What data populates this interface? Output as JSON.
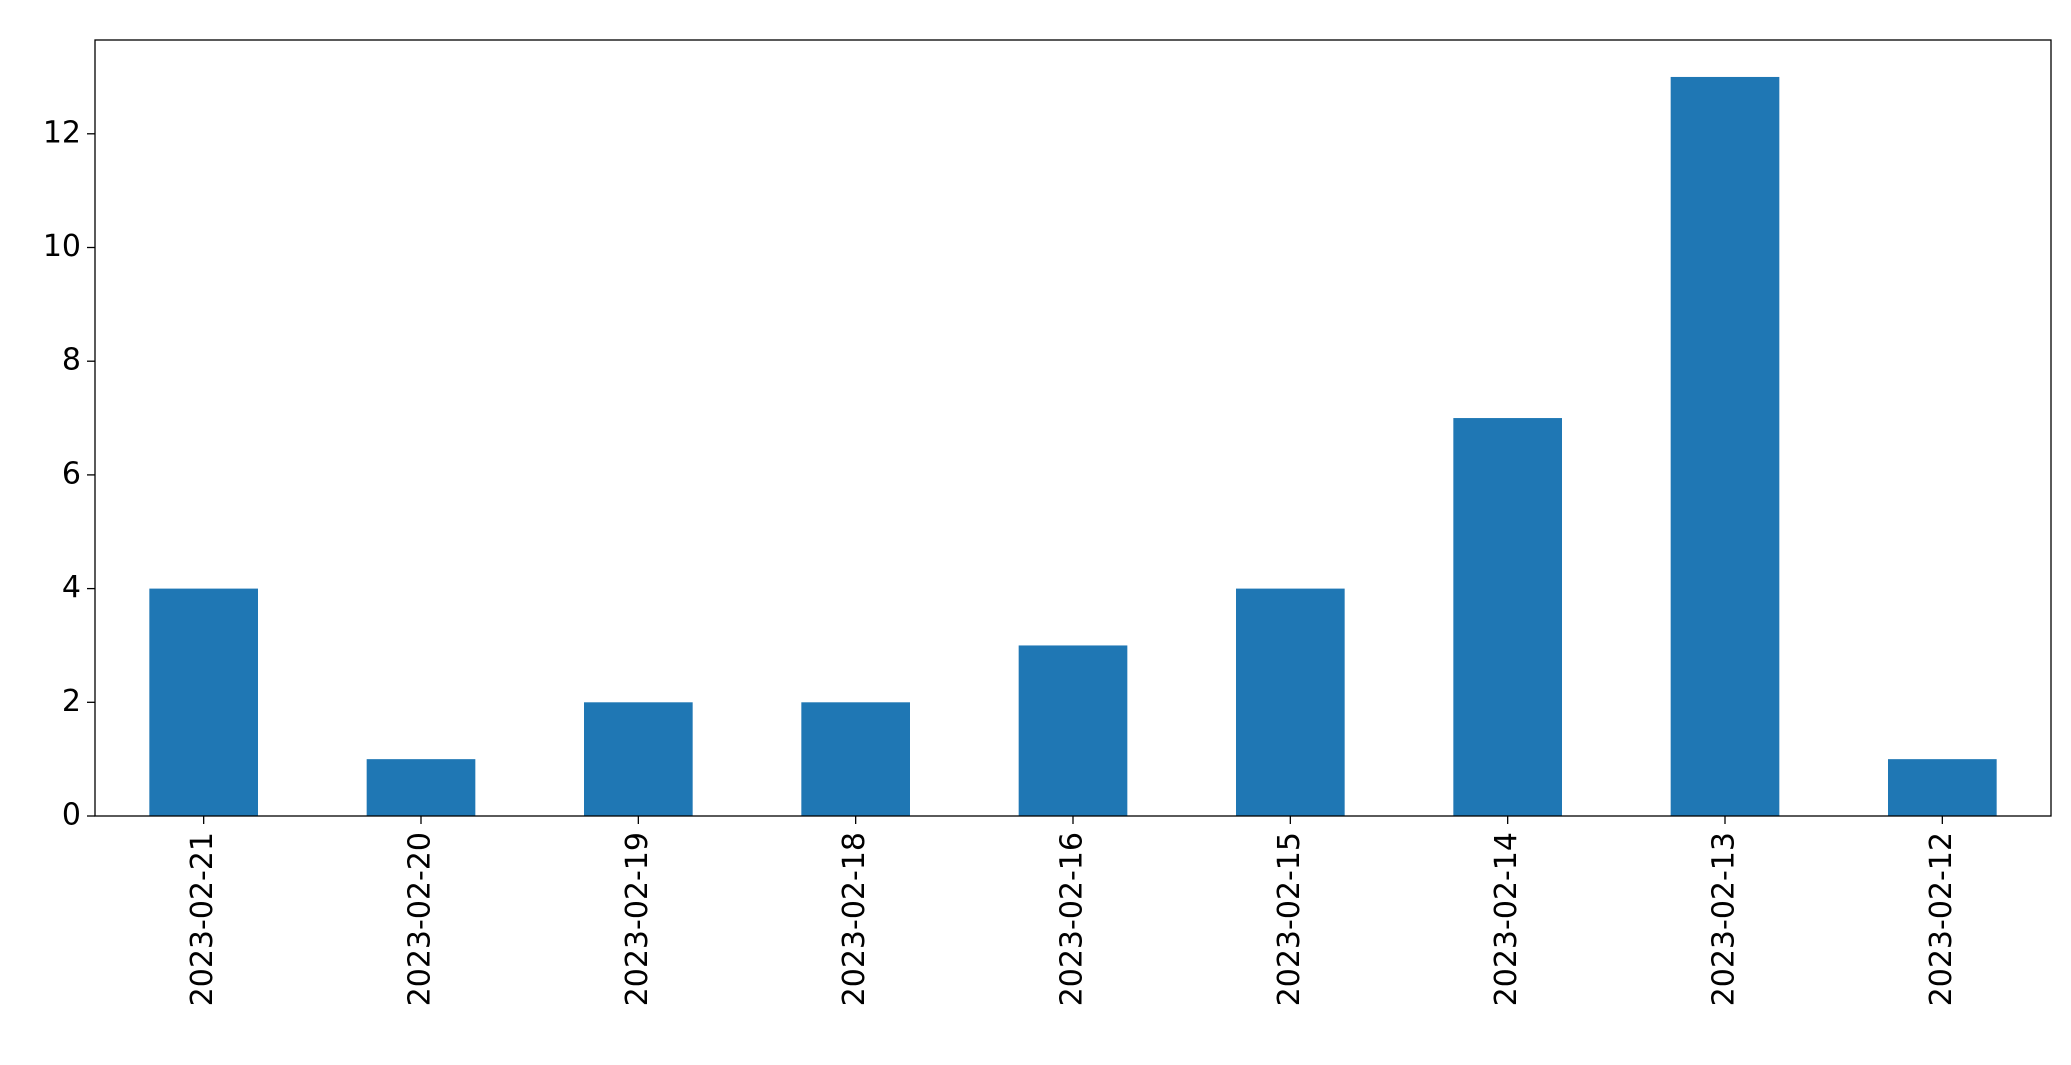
{
  "chart_data": {
    "type": "bar",
    "categories": [
      "2023-02-21",
      "2023-02-20",
      "2023-02-19",
      "2023-02-18",
      "2023-02-16",
      "2023-02-15",
      "2023-02-14",
      "2023-02-13",
      "2023-02-12"
    ],
    "values": [
      4,
      1,
      2,
      2,
      3,
      4,
      7,
      13,
      1
    ],
    "color": "#1f77b4",
    "ylim": [
      0,
      13.65
    ],
    "yticks": [
      0,
      2,
      4,
      6,
      8,
      10,
      12
    ],
    "grid": false
  }
}
